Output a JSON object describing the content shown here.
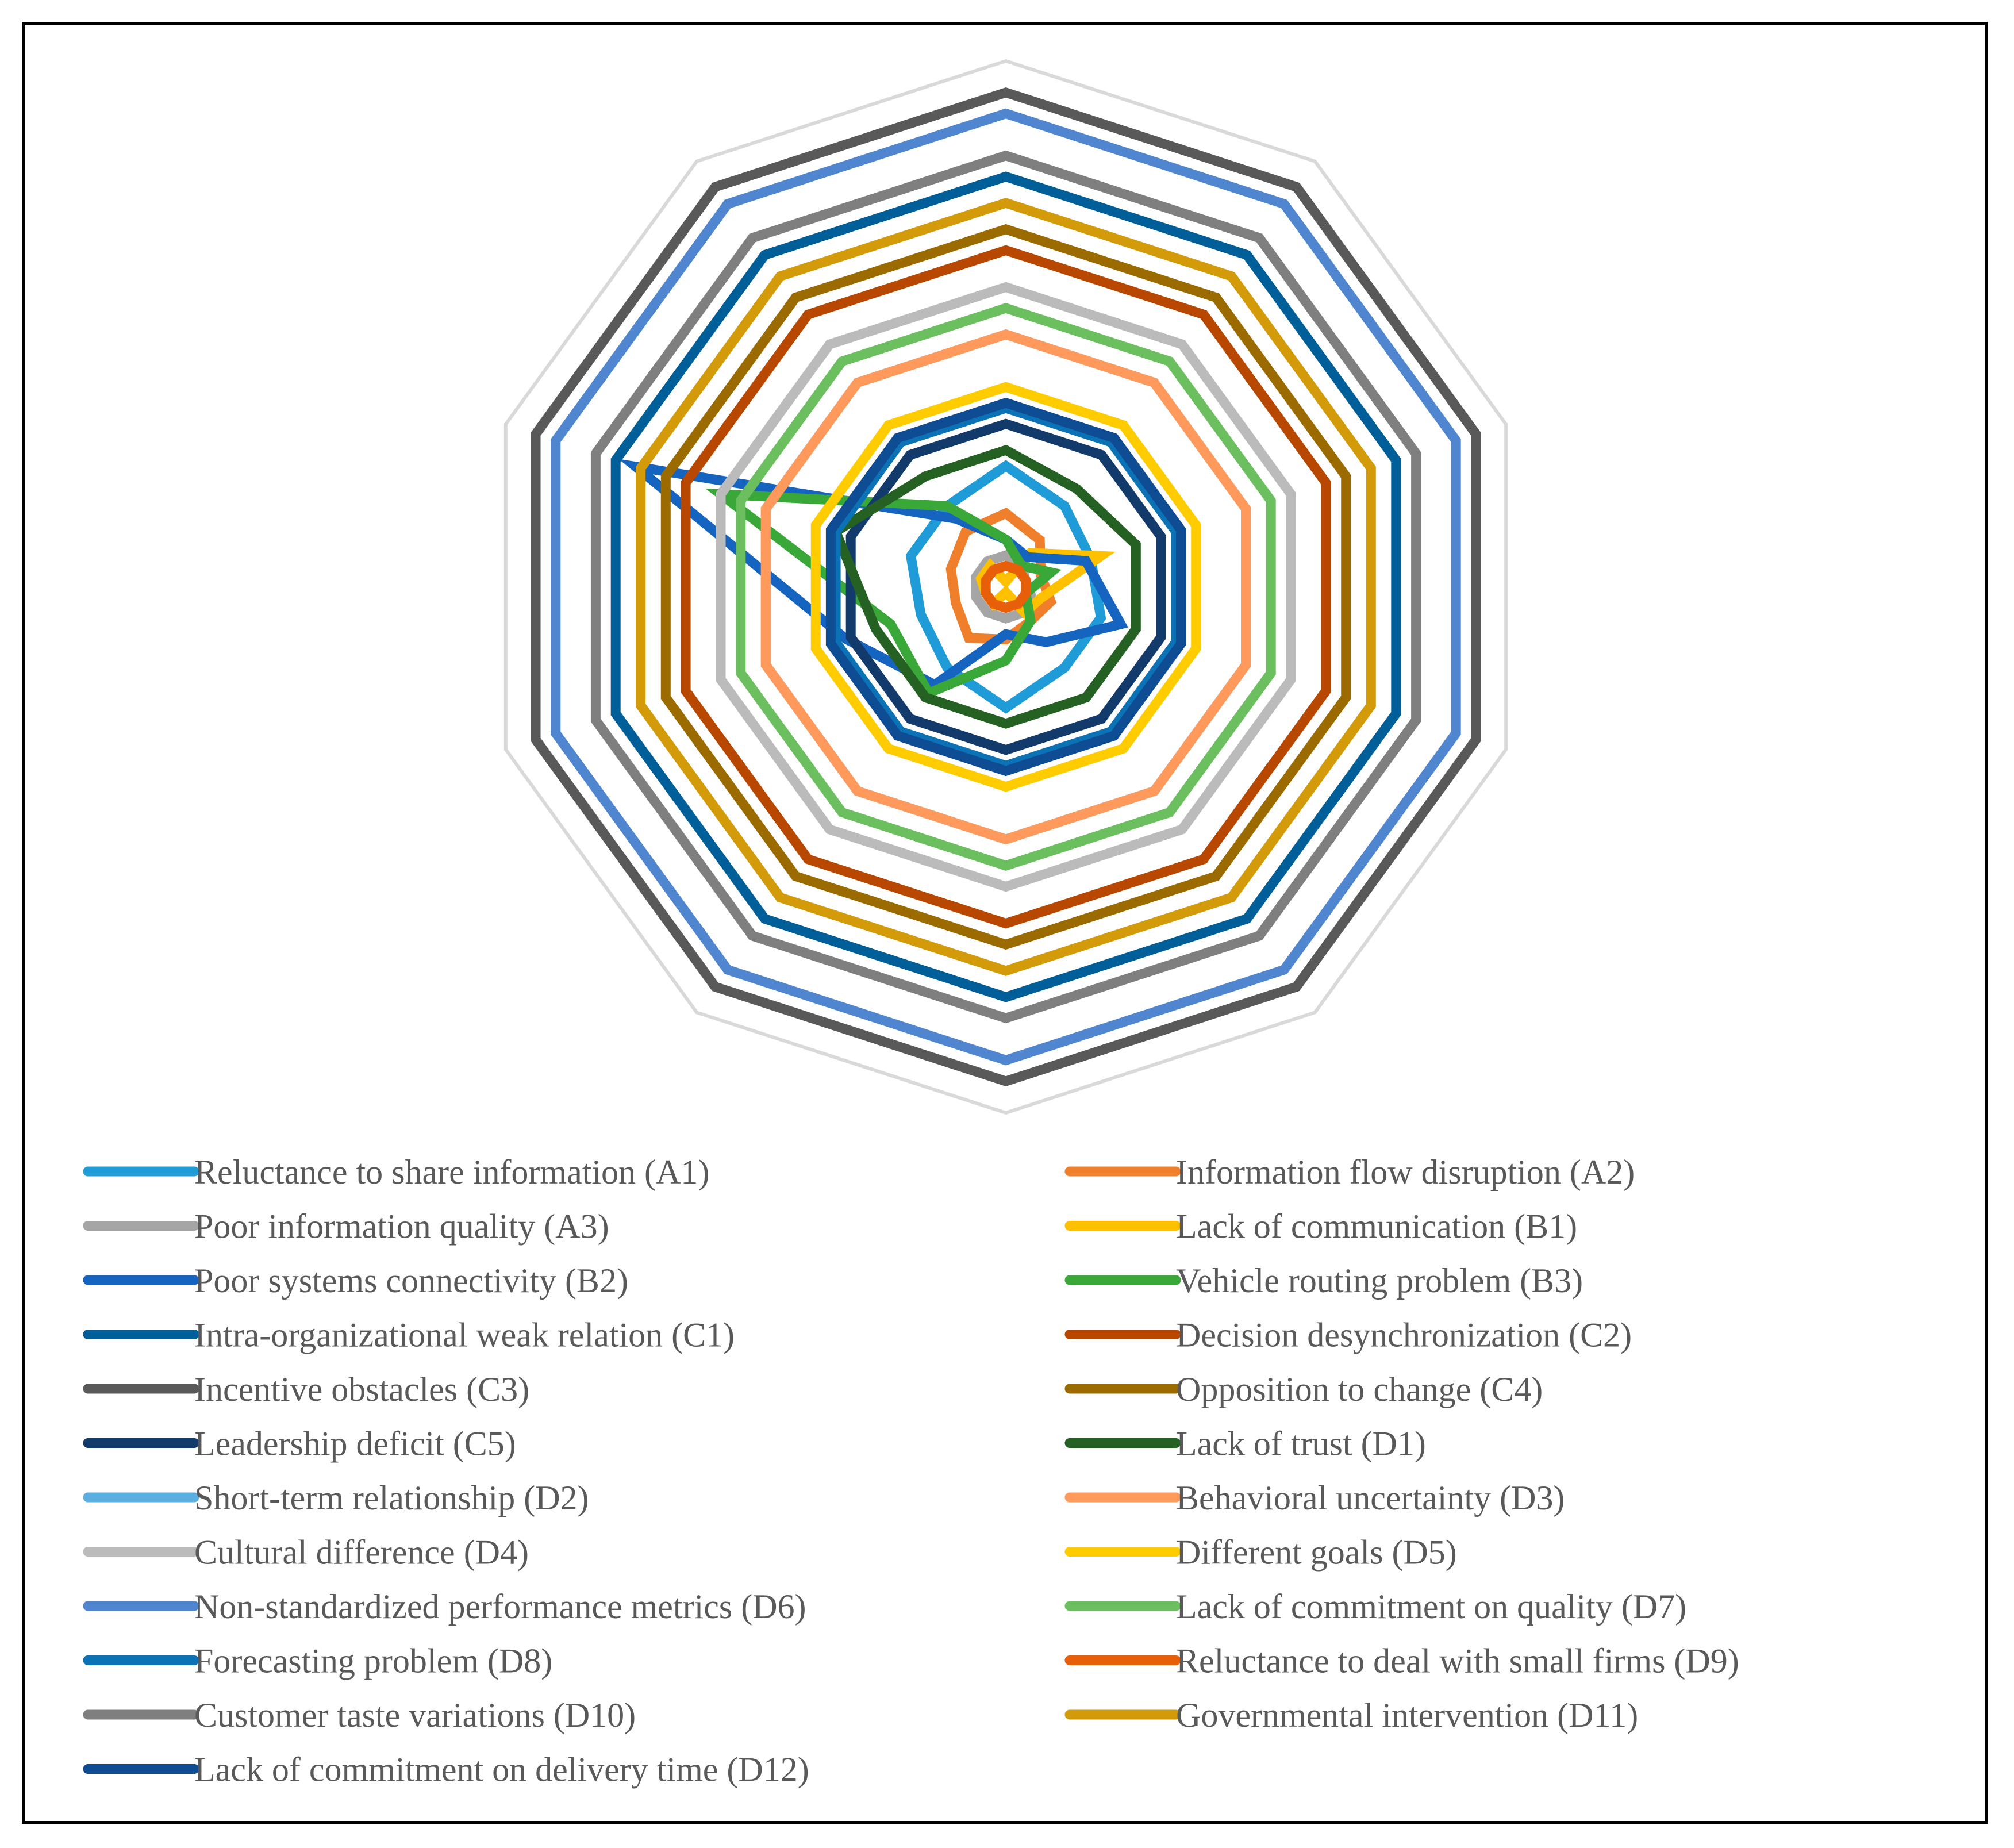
{
  "chart_data": {
    "type": "radar",
    "title": "",
    "axes_count": 10,
    "axis_labels": [],
    "value_range": [
      0,
      1
    ],
    "gridlines": [
      1
    ],
    "grid_color": "#d9d9d9",
    "legend_position": "bottom",
    "series": [
      {
        "name": "Reluctance to share information (A1)",
        "color": "#1f9bd7",
        "values": [
          0.23,
          0.19,
          0.17,
          0.19,
          0.19,
          0.23,
          0.19,
          0.17,
          0.19,
          0.19
        ]
      },
      {
        "name": "Information flow disruption (A2)",
        "color": "#f07f2c",
        "values": [
          0.14,
          0.11,
          0.07,
          0.09,
          0.08,
          0.1,
          0.12,
          0.1,
          0.11,
          0.13
        ]
      },
      {
        "name": "Poor information quality (A3)",
        "color": "#a5a5a5",
        "values": [
          0.06,
          0.05,
          0.04,
          0.05,
          0.06,
          0.06,
          0.06,
          0.06,
          0.06,
          0.06
        ]
      },
      {
        "name": "Lack of communication (B1)",
        "color": "#ffc000",
        "values": [
          0.01,
          0.08,
          0.19,
          0.07,
          0.06,
          0.01,
          0.04,
          0.04,
          0.05,
          0.05
        ]
      },
      {
        "name": "Poor systems connectivity (B2)",
        "color": "#1565c0",
        "values": [
          0.09,
          0.07,
          0.16,
          0.23,
          0.13,
          0.09,
          0.23,
          0.32,
          0.74,
          0.16
        ]
      },
      {
        "name": "Vehicle routing problem (B3)",
        "color": "#3aa838",
        "values": [
          0.09,
          0.05,
          0.09,
          0.04,
          0.08,
          0.14,
          0.25,
          0.23,
          0.57,
          0.19
        ]
      },
      {
        "name": "Intra-organizational weak relation (C1)",
        "color": "#005f99",
        "values": [
          0.78,
          0.78,
          0.78,
          0.78,
          0.78,
          0.78,
          0.78,
          0.78,
          0.78,
          0.78
        ]
      },
      {
        "name": "Decision desynchronization (C2)",
        "color": "#b84700",
        "values": [
          0.64,
          0.64,
          0.64,
          0.64,
          0.64,
          0.64,
          0.64,
          0.64,
          0.64,
          0.64
        ]
      },
      {
        "name": "Incentive obstacles (C3)",
        "color": "#595959",
        "values": [
          0.94,
          0.94,
          0.94,
          0.94,
          0.94,
          0.94,
          0.94,
          0.94,
          0.94,
          0.94
        ]
      },
      {
        "name": "Opposition to change (C4)",
        "color": "#9c6b00",
        "values": [
          0.68,
          0.68,
          0.68,
          0.68,
          0.68,
          0.68,
          0.68,
          0.68,
          0.68,
          0.68
        ]
      },
      {
        "name": "Leadership deficit (C5)",
        "color": "#123a6b",
        "values": [
          0.31,
          0.31,
          0.31,
          0.31,
          0.31,
          0.31,
          0.31,
          0.31,
          0.31,
          0.31
        ]
      },
      {
        "name": "Lack of trust (D1)",
        "color": "#266124",
        "values": [
          0.26,
          0.23,
          0.26,
          0.26,
          0.26,
          0.26,
          0.26,
          0.26,
          0.34,
          0.26
        ]
      },
      {
        "name": "Short-term relationship (D2)",
        "color": "#5aaee0",
        "values": [
          0.48,
          0.48,
          0.48,
          0.48,
          0.48,
          0.48,
          0.48,
          0.48,
          0.48,
          0.48
        ]
      },
      {
        "name": "Behavioral uncertainty (D3)",
        "color": "#ff9a5c",
        "values": [
          0.48,
          0.48,
          0.48,
          0.48,
          0.48,
          0.48,
          0.48,
          0.48,
          0.48,
          0.48
        ]
      },
      {
        "name": "Cultural difference (D4)",
        "color": "#bbbbbb",
        "values": [
          0.57,
          0.57,
          0.57,
          0.57,
          0.57,
          0.57,
          0.57,
          0.57,
          0.57,
          0.57
        ]
      },
      {
        "name": "Different goals (D5)",
        "color": "#ffcc00",
        "values": [
          0.38,
          0.38,
          0.38,
          0.38,
          0.38,
          0.38,
          0.38,
          0.38,
          0.38,
          0.38
        ]
      },
      {
        "name": "Non-standardized performance metrics (D6)",
        "color": "#4f86cf",
        "values": [
          0.9,
          0.9,
          0.9,
          0.9,
          0.9,
          0.9,
          0.9,
          0.9,
          0.9,
          0.9
        ]
      },
      {
        "name": "Lack of commitment on quality (D7)",
        "color": "#6bbf5f",
        "values": [
          0.53,
          0.53,
          0.53,
          0.53,
          0.53,
          0.53,
          0.53,
          0.53,
          0.53,
          0.53
        ]
      },
      {
        "name": "Forecasting problem (D8)",
        "color": "#0b72b5",
        "values": [
          0.34,
          0.34,
          0.34,
          0.34,
          0.34,
          0.34,
          0.34,
          0.34,
          0.34,
          0.34
        ]
      },
      {
        "name": "Reluctance to deal with small firms (D9)",
        "color": "#e85f0a",
        "values": [
          0.04,
          0.04,
          0.04,
          0.04,
          0.04,
          0.04,
          0.04,
          0.04,
          0.04,
          0.04
        ]
      },
      {
        "name": "Customer taste variations (D10)",
        "color": "#7f7f7f",
        "values": [
          0.82,
          0.82,
          0.82,
          0.82,
          0.82,
          0.82,
          0.82,
          0.82,
          0.82,
          0.82
        ]
      },
      {
        "name": "Governmental intervention (D11)",
        "color": "#d39a0a",
        "values": [
          0.73,
          0.73,
          0.73,
          0.73,
          0.73,
          0.73,
          0.73,
          0.73,
          0.73,
          0.73
        ]
      },
      {
        "name": "Lack of commitment on delivery time (D12)",
        "color": "#0e4c94",
        "values": [
          0.35,
          0.35,
          0.35,
          0.35,
          0.35,
          0.35,
          0.35,
          0.35,
          0.35,
          0.35
        ]
      }
    ]
  }
}
